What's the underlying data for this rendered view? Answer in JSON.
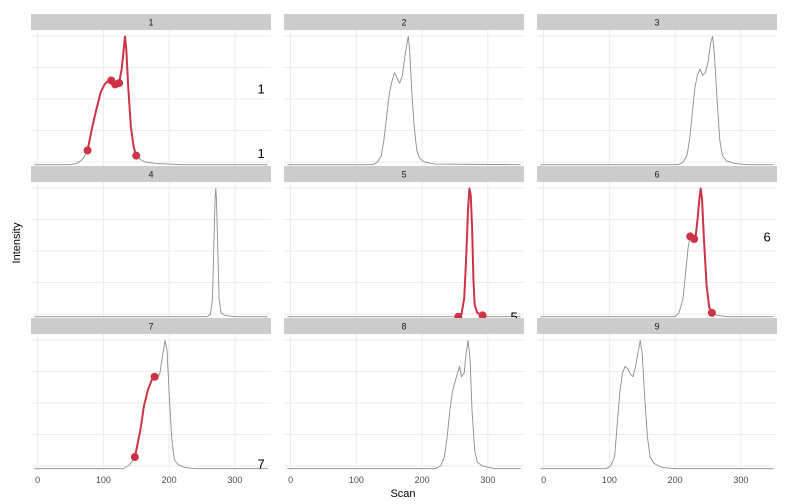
{
  "chart_data": {
    "type": "line",
    "layout": "facet-grid 3x3",
    "xlabel": "Scan",
    "ylabel": "Intensity",
    "xlim": [
      -10,
      355
    ],
    "x_ticks": [
      0,
      100,
      200,
      300
    ],
    "y_ticks_visible": false,
    "grid": true,
    "colors": {
      "trace": "#8c8c8c",
      "highlight": "#cc3344",
      "strip": "#cccccc",
      "grid": "#ebebeb"
    },
    "panels": [
      {
        "label": "1",
        "row": 0,
        "col": 0,
        "ylim": [
          0,
          1.05
        ],
        "trace": [
          [
            -5,
            0.01
          ],
          [
            50,
            0.01
          ],
          [
            60,
            0.02
          ],
          [
            68,
            0.05
          ],
          [
            72,
            0.08
          ],
          [
            78,
            0.18
          ],
          [
            84,
            0.32
          ],
          [
            90,
            0.45
          ],
          [
            96,
            0.57
          ],
          [
            102,
            0.63
          ],
          [
            108,
            0.66
          ],
          [
            112,
            0.67
          ],
          [
            116,
            0.64
          ],
          [
            120,
            0.62
          ],
          [
            124,
            0.64
          ],
          [
            128,
            0.75
          ],
          [
            131,
            0.9
          ],
          [
            133,
            1.0
          ],
          [
            135,
            0.9
          ],
          [
            138,
            0.6
          ],
          [
            142,
            0.3
          ],
          [
            146,
            0.15
          ],
          [
            150,
            0.08
          ],
          [
            156,
            0.05
          ],
          [
            164,
            0.03
          ],
          [
            180,
            0.02
          ],
          [
            220,
            0.01
          ],
          [
            350,
            0.01
          ]
        ],
        "highlight": [
          [
            76,
            0.12
          ],
          [
            84,
            0.32
          ],
          [
            90,
            0.45
          ],
          [
            96,
            0.57
          ],
          [
            102,
            0.63
          ],
          [
            108,
            0.66
          ],
          [
            112,
            0.67
          ],
          [
            116,
            0.64
          ],
          [
            120,
            0.62
          ],
          [
            124,
            0.64
          ],
          [
            128,
            0.75
          ],
          [
            131,
            0.9
          ],
          [
            133,
            1.0
          ],
          [
            135,
            0.9
          ],
          [
            138,
            0.6
          ],
          [
            142,
            0.3
          ],
          [
            146,
            0.15
          ],
          [
            150,
            0.08
          ]
        ],
        "markers": [
          [
            76,
            0.12
          ],
          [
            112,
            0.66
          ],
          [
            118,
            0.63
          ],
          [
            124,
            0.64
          ],
          [
            150,
            0.08
          ]
        ],
        "annotations": [
          {
            "text": "1",
            "x": 340,
            "y": 0.6
          },
          {
            "text": "1",
            "x": 340,
            "y": 0.1
          }
        ]
      },
      {
        "label": "2",
        "row": 0,
        "col": 1,
        "ylim": [
          0,
          1.05
        ],
        "trace": [
          [
            -5,
            0.01
          ],
          [
            125,
            0.01
          ],
          [
            132,
            0.03
          ],
          [
            138,
            0.08
          ],
          [
            142,
            0.2
          ],
          [
            146,
            0.38
          ],
          [
            150,
            0.55
          ],
          [
            154,
            0.65
          ],
          [
            158,
            0.72
          ],
          [
            162,
            0.68
          ],
          [
            166,
            0.64
          ],
          [
            170,
            0.7
          ],
          [
            174,
            0.85
          ],
          [
            177,
            0.95
          ],
          [
            179,
            1.0
          ],
          [
            181,
            0.9
          ],
          [
            184,
            0.6
          ],
          [
            188,
            0.3
          ],
          [
            192,
            0.12
          ],
          [
            196,
            0.06
          ],
          [
            204,
            0.03
          ],
          [
            220,
            0.015
          ],
          [
            350,
            0.01
          ]
        ],
        "highlight": [],
        "markers": [],
        "annotations": []
      },
      {
        "label": "3",
        "row": 0,
        "col": 2,
        "ylim": [
          0,
          1.05
        ],
        "trace": [
          [
            -5,
            0.01
          ],
          [
            205,
            0.01
          ],
          [
            212,
            0.03
          ],
          [
            218,
            0.08
          ],
          [
            222,
            0.2
          ],
          [
            226,
            0.4
          ],
          [
            230,
            0.6
          ],
          [
            234,
            0.7
          ],
          [
            238,
            0.75
          ],
          [
            242,
            0.7
          ],
          [
            246,
            0.72
          ],
          [
            250,
            0.8
          ],
          [
            254,
            0.95
          ],
          [
            257,
            1.0
          ],
          [
            260,
            0.85
          ],
          [
            264,
            0.5
          ],
          [
            268,
            0.2
          ],
          [
            272,
            0.08
          ],
          [
            278,
            0.04
          ],
          [
            290,
            0.02
          ],
          [
            310,
            0.01
          ],
          [
            350,
            0.01
          ]
        ],
        "highlight": [],
        "markers": [],
        "annotations": []
      },
      {
        "label": "4",
        "row": 1,
        "col": 0,
        "ylim": [
          0,
          1.05
        ],
        "trace": [
          [
            -5,
            0.01
          ],
          [
            258,
            0.01
          ],
          [
            263,
            0.03
          ],
          [
            266,
            0.15
          ],
          [
            268,
            0.55
          ],
          [
            270,
            0.92
          ],
          [
            271,
            1.0
          ],
          [
            272,
            0.92
          ],
          [
            274,
            0.55
          ],
          [
            276,
            0.15
          ],
          [
            279,
            0.04
          ],
          [
            285,
            0.02
          ],
          [
            300,
            0.01
          ],
          [
            350,
            0.01
          ]
        ],
        "highlight": [],
        "markers": [],
        "annotations": []
      },
      {
        "label": "5",
        "row": 1,
        "col": 1,
        "ylim": [
          0,
          1.05
        ],
        "trace": [
          [
            -5,
            0.01
          ],
          [
            255,
            0.01
          ],
          [
            260,
            0.03
          ],
          [
            264,
            0.15
          ],
          [
            267,
            0.45
          ],
          [
            270,
            0.85
          ],
          [
            272,
            1.0
          ],
          [
            274,
            0.95
          ],
          [
            276,
            0.7
          ],
          [
            278,
            0.3
          ],
          [
            280,
            0.1
          ],
          [
            284,
            0.04
          ],
          [
            292,
            0.02
          ],
          [
            300,
            0.01
          ],
          [
            350,
            0.01
          ]
        ],
        "highlight": [
          [
            255,
            0.01
          ],
          [
            260,
            0.03
          ],
          [
            264,
            0.15
          ],
          [
            267,
            0.45
          ],
          [
            270,
            0.85
          ],
          [
            272,
            1.0
          ],
          [
            274,
            0.95
          ],
          [
            276,
            0.7
          ],
          [
            278,
            0.3
          ],
          [
            280,
            0.1
          ],
          [
            284,
            0.04
          ],
          [
            292,
            0.02
          ]
        ],
        "markers": [
          [
            255,
            0.01
          ],
          [
            292,
            0.02
          ]
        ],
        "annotations": [
          {
            "text": "5",
            "x": 340,
            "y": 0.01
          }
        ]
      },
      {
        "label": "6",
        "row": 1,
        "col": 2,
        "ylim": [
          0,
          1.05
        ],
        "trace": [
          [
            -5,
            0.01
          ],
          [
            200,
            0.01
          ],
          [
            206,
            0.04
          ],
          [
            212,
            0.15
          ],
          [
            216,
            0.35
          ],
          [
            220,
            0.55
          ],
          [
            223,
            0.63
          ],
          [
            226,
            0.64
          ],
          [
            228,
            0.62
          ],
          [
            231,
            0.62
          ],
          [
            234,
            0.75
          ],
          [
            237,
            0.92
          ],
          [
            239,
            1.0
          ],
          [
            241,
            0.92
          ],
          [
            244,
            0.6
          ],
          [
            248,
            0.25
          ],
          [
            252,
            0.08
          ],
          [
            256,
            0.04
          ],
          [
            264,
            0.02
          ],
          [
            280,
            0.01
          ],
          [
            350,
            0.01
          ]
        ],
        "highlight": [
          [
            223,
            0.63
          ],
          [
            226,
            0.64
          ],
          [
            228,
            0.62
          ],
          [
            231,
            0.62
          ],
          [
            234,
            0.75
          ],
          [
            237,
            0.92
          ],
          [
            239,
            1.0
          ],
          [
            241,
            0.92
          ],
          [
            244,
            0.6
          ],
          [
            248,
            0.25
          ],
          [
            252,
            0.08
          ],
          [
            256,
            0.04
          ]
        ],
        "markers": [
          [
            223,
            0.63
          ],
          [
            229,
            0.61
          ],
          [
            256,
            0.04
          ]
        ],
        "annotations": [
          {
            "text": "6",
            "x": 340,
            "y": 0.63
          }
        ]
      },
      {
        "label": "7",
        "row": 2,
        "col": 0,
        "ylim": [
          0,
          1.05
        ],
        "trace": [
          [
            -5,
            0.01
          ],
          [
            130,
            0.01
          ],
          [
            140,
            0.04
          ],
          [
            148,
            0.1
          ],
          [
            156,
            0.3
          ],
          [
            162,
            0.5
          ],
          [
            168,
            0.62
          ],
          [
            174,
            0.7
          ],
          [
            178,
            0.72
          ],
          [
            182,
            0.7
          ],
          [
            186,
            0.75
          ],
          [
            190,
            0.88
          ],
          [
            194,
            1.0
          ],
          [
            197,
            0.92
          ],
          [
            200,
            0.6
          ],
          [
            204,
            0.25
          ],
          [
            208,
            0.08
          ],
          [
            214,
            0.04
          ],
          [
            224,
            0.02
          ],
          [
            240,
            0.01
          ],
          [
            350,
            0.01
          ]
        ],
        "highlight": [
          [
            148,
            0.1
          ],
          [
            156,
            0.3
          ],
          [
            162,
            0.5
          ],
          [
            168,
            0.62
          ],
          [
            174,
            0.7
          ],
          [
            178,
            0.72
          ],
          [
            182,
            0.7
          ]
        ],
        "markers": [
          [
            148,
            0.1
          ],
          [
            178,
            0.72
          ]
        ],
        "annotations": [
          {
            "text": "7",
            "x": 340,
            "y": 0.05
          }
        ]
      },
      {
        "label": "8",
        "row": 2,
        "col": 1,
        "ylim": [
          0,
          1.05
        ],
        "trace": [
          [
            -5,
            0.01
          ],
          [
            220,
            0.01
          ],
          [
            228,
            0.03
          ],
          [
            234,
            0.1
          ],
          [
            238,
            0.25
          ],
          [
            242,
            0.45
          ],
          [
            246,
            0.6
          ],
          [
            250,
            0.68
          ],
          [
            254,
            0.75
          ],
          [
            257,
            0.8
          ],
          [
            260,
            0.72
          ],
          [
            264,
            0.75
          ],
          [
            267,
            0.9
          ],
          [
            270,
            1.0
          ],
          [
            273,
            0.85
          ],
          [
            276,
            0.45
          ],
          [
            280,
            0.15
          ],
          [
            284,
            0.06
          ],
          [
            292,
            0.03
          ],
          [
            310,
            0.01
          ],
          [
            350,
            0.01
          ]
        ],
        "highlight": [],
        "markers": [],
        "annotations": []
      },
      {
        "label": "9",
        "row": 2,
        "col": 2,
        "ylim": [
          0,
          1.05
        ],
        "trace": [
          [
            -5,
            0.01
          ],
          [
            95,
            0.01
          ],
          [
            102,
            0.03
          ],
          [
            108,
            0.1
          ],
          [
            112,
            0.35
          ],
          [
            116,
            0.6
          ],
          [
            120,
            0.75
          ],
          [
            124,
            0.8
          ],
          [
            128,
            0.78
          ],
          [
            132,
            0.74
          ],
          [
            136,
            0.72
          ],
          [
            140,
            0.8
          ],
          [
            144,
            0.92
          ],
          [
            147,
            1.0
          ],
          [
            150,
            0.9
          ],
          [
            154,
            0.55
          ],
          [
            158,
            0.25
          ],
          [
            162,
            0.1
          ],
          [
            168,
            0.05
          ],
          [
            180,
            0.02
          ],
          [
            200,
            0.01
          ],
          [
            350,
            0.01
          ]
        ],
        "highlight": [],
        "markers": [],
        "annotations": []
      }
    ]
  }
}
